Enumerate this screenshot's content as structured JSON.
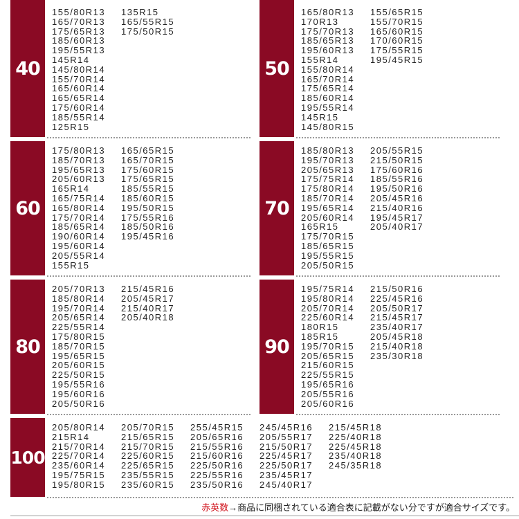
{
  "accent_color": "#8a0a24",
  "groups": [
    {
      "label": "40",
      "columns": [
        [
          "155/80R13",
          "165/70R13",
          "175/65R13",
          "185/60R13",
          "195/55R13",
          "145R14",
          "145/80R14",
          "155/70R14",
          "165/60R14",
          "165/65R14",
          "175/60R14",
          "185/55R14",
          "125R15"
        ],
        [
          "135R15",
          "165/55R15",
          "175/50R15"
        ]
      ]
    },
    {
      "label": "50",
      "columns": [
        [
          "165/80R13",
          "170R13",
          "175/70R13",
          "185/65R13",
          "195/60R13",
          "155R14",
          "155/80R14",
          "165/70R14",
          "175/65R14",
          "185/60R14",
          "195/55R14",
          "145R15",
          "145/80R15"
        ],
        [
          "155/65R15",
          "155/70R15",
          "165/60R15",
          "170/60R15",
          "175/55R15",
          "195/45R15"
        ]
      ]
    },
    {
      "label": "60",
      "columns": [
        [
          "175/80R13",
          "185/70R13",
          "195/65R13",
          "205/60R13",
          "165R14",
          "165/75R14",
          "165/80R14",
          "175/70R14",
          "185/65R14",
          "190/60R14",
          "195/60R14",
          "205/55R14",
          "155R15"
        ],
        [
          "165/65R15",
          "165/70R15",
          "175/60R15",
          "175/65R15",
          "185/55R15",
          "185/60R15",
          "195/50R15",
          "175/55R16",
          "185/50R16",
          "195/45R16"
        ]
      ]
    },
    {
      "label": "70",
      "columns": [
        [
          "185/80R13",
          "195/70R13",
          "205/65R13",
          "175/75R14",
          "175/80R14",
          "185/70R14",
          "195/65R14",
          "205/60R14",
          "165R15",
          "175/70R15",
          "185/65R15",
          "195/55R15",
          "205/50R15"
        ],
        [
          "205/55R15",
          "215/50R15",
          "175/60R16",
          "185/55R16",
          "195/50R16",
          "205/45R16",
          "215/40R16",
          "195/45R17",
          "205/40R17"
        ]
      ]
    },
    {
      "label": "80",
      "columns": [
        [
          "205/70R13",
          "185/80R14",
          "195/70R14",
          "205/65R14",
          "225/55R14",
          "175/80R15",
          "185/70R15",
          "195/65R15",
          "205/60R15",
          "225/50R15",
          "195/55R16",
          "195/60R16",
          "205/50R16"
        ],
        [
          "215/45R16",
          "205/45R17",
          "215/40R17",
          "205/40R18"
        ]
      ]
    },
    {
      "label": "90",
      "columns": [
        [
          "195/75R14",
          "195/80R14",
          "205/70R14",
          "225/60R14",
          "180R15",
          "185R15",
          "195/70R15",
          "205/65R15",
          "215/60R15",
          "225/55R15",
          "195/65R16",
          "205/55R16",
          "205/60R16"
        ],
        [
          "215/50R16",
          "225/45R16",
          "205/50R17",
          "215/45R17",
          "235/40R17",
          "205/45R18",
          "215/40R18",
          "235/30R18"
        ]
      ]
    },
    {
      "label": "100",
      "columns": [
        [
          "205/80R14",
          "215R14",
          "215/70R14",
          "225/70R14",
          "235/60R14",
          "195/75R15",
          "195/80R15"
        ],
        [
          "205/70R15",
          "215/65R15",
          "215/70R15",
          "225/60R15",
          "225/65R15",
          "235/55R15",
          "235/60R15"
        ],
        [
          "255/45R15",
          "205/65R16",
          "215/55R16",
          "215/60R16",
          "225/50R16",
          "225/55R16",
          "235/50R16"
        ],
        [
          "245/45R16",
          "205/55R17",
          "215/50R17",
          "225/45R17",
          "225/50R17",
          "235/45R17",
          "245/40R17"
        ],
        [
          "215/45R18",
          "225/40R18",
          "225/45R18",
          "235/40R18",
          "245/35R18"
        ]
      ]
    }
  ],
  "footer": {
    "highlight": "赤英数",
    "text": "→商品に同梱されている適合表に記載がない分ですが適合サイズです。"
  }
}
